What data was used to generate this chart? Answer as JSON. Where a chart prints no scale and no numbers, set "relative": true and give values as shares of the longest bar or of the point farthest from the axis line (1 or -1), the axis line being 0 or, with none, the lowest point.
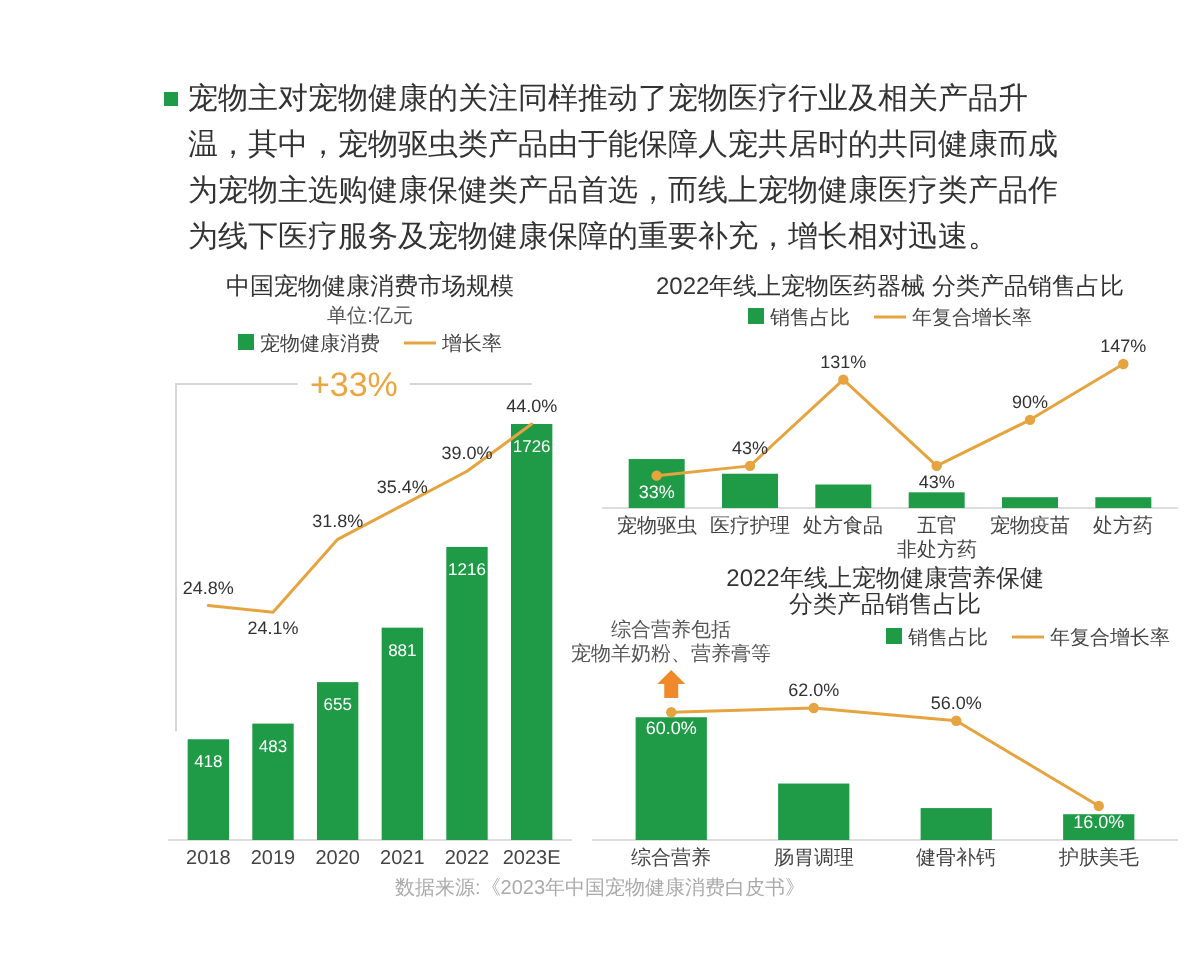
{
  "chart_data": [
    {
      "type": "other",
      "annotations": [
        "宠物主对宠物健康的关注同样推动了宠物医疗行业及相关产品升温，其中，宠物驱虫类产品由于能保障人宠共居时的共同健康而成为宠物主选购健康保健类产品首选，而线上宠物健康医疗类产品作为线下医疗服务及宠物健康保障的重要补充，增长相对迅速。"
      ]
    },
    {
      "type": "bar",
      "title": "中国宠物健康消费市场规模",
      "subtitle": "单位:亿元",
      "categories": [
        "2018",
        "2019",
        "2020",
        "2021",
        "2022",
        "2023E"
      ],
      "series": [
        {
          "name": "宠物健康消费",
          "type": "bar",
          "color": "#1f9b47",
          "values": [
            418,
            483,
            655,
            881,
            1216,
            1726
          ],
          "value_labels": [
            "418",
            "483",
            "655",
            "881",
            "1216",
            "1726"
          ]
        },
        {
          "name": "增长率",
          "type": "line",
          "axis": "y2",
          "color": "#e5a440",
          "values": [
            24.8,
            24.1,
            31.8,
            35.4,
            39.0,
            44.0
          ],
          "value_labels": [
            "24.8%",
            "24.1%",
            "31.8%",
            "35.4%",
            "39.0%",
            "44.0%"
          ]
        }
      ],
      "legend": "top",
      "annotations": [
        "+33%",
        "数据来源:《2023年中国宠物健康消费白皮书》"
      ]
    },
    {
      "type": "bar",
      "title": "2022年线上宠物医药器械 分类产品销售占比",
      "relative": true,
      "categories": [
        "宠物驱虫",
        "医疗护理",
        "处方食品",
        "五官非处方药",
        "宠物疫苗",
        "处方药"
      ],
      "series": [
        {
          "name": "销售占比",
          "color": "#1f9b47",
          "values": [
            1,
            0.7,
            0.48,
            0.32,
            0.22,
            0.22
          ]
        }
      ],
      "legend": "top"
    },
    {
      "type": "line",
      "categories": [
        "宠物驱虫",
        "医疗护理",
        "处方食品",
        "五官非处方药",
        "宠物疫苗",
        "处方药"
      ],
      "tick_labels": false,
      "series": [
        {
          "name": "年复合增长率",
          "color": "#e5a440",
          "marker": "circle",
          "values": [
            33,
            43,
            131,
            43,
            90,
            147
          ],
          "value_labels": [
            "33%",
            "43%",
            "131%",
            "43%",
            "90%",
            "147%"
          ]
        }
      ],
      "legend": "top"
    },
    {
      "type": "bar",
      "title": "2022年线上宠物健康营养保健分类产品销售占比",
      "relative": true,
      "categories": [
        "综合营养",
        "肠胃调理",
        "健骨补钙",
        "护肤美毛"
      ],
      "series": [
        {
          "name": "销售占比",
          "color": "#1f9b47",
          "values": [
            1,
            0.46,
            0.26,
            0.21
          ]
        }
      ],
      "legend": "top right",
      "annotations": [
        "综合营养包括宠物羊奶粉、营养膏等"
      ]
    },
    {
      "type": "line",
      "categories": [
        "综合营养",
        "肠胃调理",
        "健骨补钙",
        "护肤美毛"
      ],
      "tick_labels": false,
      "series": [
        {
          "name": "年复合增长率",
          "color": "#e5a440",
          "marker": "circle",
          "values": [
            60.0,
            62.0,
            56.0,
            16.0
          ],
          "value_labels": [
            "60.0%",
            "62.0%",
            "56.0%",
            "16.0%"
          ]
        }
      ],
      "legend": "top right"
    }
  ]
}
